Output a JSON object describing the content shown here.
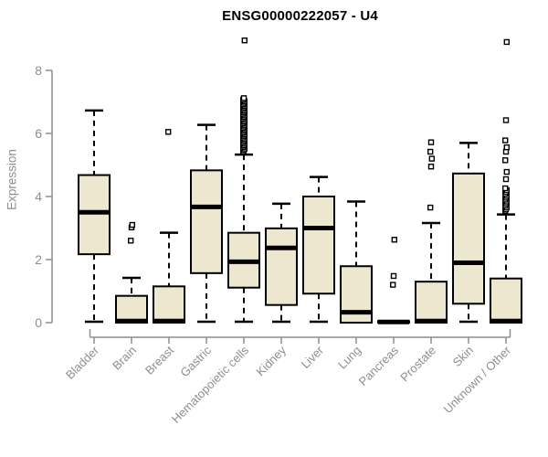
{
  "title": "ENSG00000222057 - U4",
  "chart_data": {
    "type": "boxplot",
    "title": "ENSG00000222057 - U4",
    "xlabel": "",
    "ylabel": "Expression",
    "ylim": [
      0,
      8
    ],
    "yticks": [
      0,
      2,
      4,
      6,
      8
    ],
    "grid": false,
    "legend": "none",
    "colors": {
      "box_fill": "#ece7ce",
      "box_line": "#000000",
      "axis": "#8e8e8e",
      "title_text": "#000000",
      "background": "#ffffff"
    },
    "categories": [
      "Bladder",
      "Brain",
      "Breast",
      "Gastric",
      "Hematopoietic cells",
      "Kidney",
      "Liver",
      "Lung",
      "Pancreas",
      "Prostate",
      "Skin",
      "Unknown / Other"
    ],
    "series": [
      {
        "name": "Bladder",
        "whisker_low": 0.03,
        "q1": 2.17,
        "median": 3.5,
        "q3": 4.68,
        "whisker_high": 6.73,
        "outliers": []
      },
      {
        "name": "Brain",
        "whisker_low": 0,
        "q1": 0,
        "median": 0.05,
        "q3": 0.85,
        "whisker_high": 1.42,
        "outliers": [
          2.6,
          3.02,
          3.1
        ]
      },
      {
        "name": "Breast",
        "whisker_low": 0,
        "q1": 0,
        "median": 0.05,
        "q3": 1.15,
        "whisker_high": 2.85,
        "outliers": [
          6.05
        ]
      },
      {
        "name": "Gastric",
        "whisker_low": 0.03,
        "q1": 1.57,
        "median": 3.67,
        "q3": 4.83,
        "whisker_high": 6.27,
        "outliers": []
      },
      {
        "name": "Hematopoietic cells",
        "whisker_low": 0.03,
        "q1": 1.11,
        "median": 1.93,
        "q3": 2.85,
        "whisker_high": 5.33,
        "outliers": [
          5.42,
          5.47,
          5.52,
          5.57,
          5.62,
          5.67,
          5.72,
          5.77,
          5.82,
          5.87,
          5.92,
          5.97,
          6.02,
          6.07,
          6.12,
          6.17,
          6.22,
          6.27,
          6.32,
          6.37,
          6.42,
          6.47,
          6.52,
          6.57,
          6.62,
          6.67,
          6.72,
          6.77,
          6.82,
          6.87,
          6.92,
          6.97,
          7.02,
          7.07,
          7.12,
          8.95
        ],
        "note": "dense outlier stack 5.4-7.1 plus single extreme at 8.95"
      },
      {
        "name": "Kidney",
        "whisker_low": 0.03,
        "q1": 0.56,
        "median": 2.37,
        "q3": 2.99,
        "whisker_high": 3.77,
        "outliers": []
      },
      {
        "name": "Liver",
        "whisker_low": 0.03,
        "q1": 0.92,
        "median": 3.0,
        "q3": 4.0,
        "whisker_high": 4.62,
        "outliers": []
      },
      {
        "name": "Lung",
        "whisker_low": 0,
        "q1": 0,
        "median": 0.33,
        "q3": 1.79,
        "whisker_high": 3.84,
        "outliers": []
      },
      {
        "name": "Pancreas",
        "whisker_low": 0,
        "q1": 0,
        "median": 0.02,
        "q3": 0.05,
        "whisker_high": 0.05,
        "outliers": [
          1.2,
          1.48,
          2.63
        ]
      },
      {
        "name": "Prostate",
        "whisker_low": 0,
        "q1": 0,
        "median": 0.05,
        "q3": 1.3,
        "whisker_high": 3.16,
        "outliers": [
          3.65,
          4.95,
          5.2,
          5.42,
          5.72
        ]
      },
      {
        "name": "Skin",
        "whisker_low": 0.03,
        "q1": 0.6,
        "median": 1.9,
        "q3": 4.73,
        "whisker_high": 5.7,
        "outliers": []
      },
      {
        "name": "Unknown / Other",
        "whisker_low": 0,
        "q1": 0,
        "median": 0.05,
        "q3": 1.4,
        "whisker_high": 3.43,
        "outliers": [
          3.55,
          3.6,
          3.66,
          3.72,
          3.78,
          3.84,
          3.9,
          3.96,
          4.02,
          4.08,
          4.14,
          4.2,
          4.26,
          4.55,
          4.78,
          5.15,
          5.42,
          5.56,
          5.78,
          6.42,
          8.9
        ]
      }
    ]
  }
}
